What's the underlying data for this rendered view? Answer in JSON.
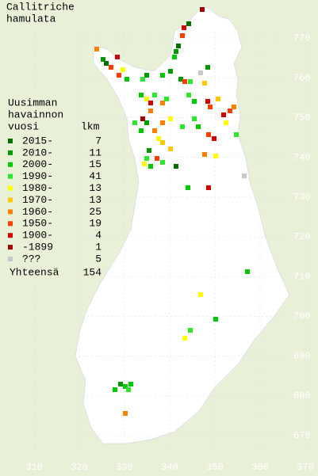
{
  "map": {
    "title": [
      "Callitriche",
      "hamulata"
    ],
    "legend_heading": [
      "Uusimman",
      "havainnon",
      "vuosi"
    ],
    "legend_count_heading": "lkm",
    "legend": [
      {
        "label": "2015-",
        "count": 7,
        "color": "#006e00"
      },
      {
        "label": "2010-",
        "count": 11,
        "color": "#009a00"
      },
      {
        "label": "2000-",
        "count": 15,
        "color": "#00c800"
      },
      {
        "label": "1990-",
        "count": 41,
        "color": "#2ee62e"
      },
      {
        "label": "1980-",
        "count": 13,
        "color": "#ffff00"
      },
      {
        "label": "1970-",
        "count": 13,
        "color": "#ffc800"
      },
      {
        "label": "1960-",
        "count": 25,
        "color": "#ff8000"
      },
      {
        "label": "1950-",
        "count": 19,
        "color": "#ff3c00"
      },
      {
        "label": "1900-",
        "count": 4,
        "color": "#d20000"
      },
      {
        "label": "-1899",
        "count": 1,
        "color": "#a00000"
      },
      {
        "label": "???",
        "count": 5,
        "color": "#c8c8c8"
      }
    ],
    "total": {
      "label": "Yhteensä",
      "value": 154
    },
    "x_labels": [
      310,
      320,
      330,
      340,
      350,
      360,
      370
    ],
    "y_labels": [
      770,
      760,
      750,
      740,
      730,
      720,
      710,
      700,
      690,
      680,
      670
    ]
  }
}
